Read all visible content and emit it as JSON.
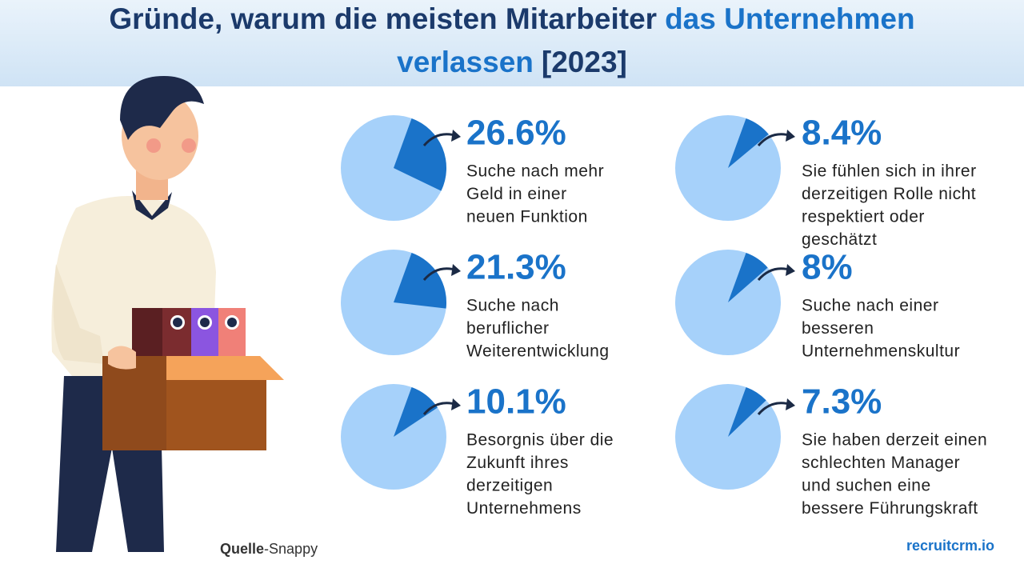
{
  "header": {
    "title_line1": [
      "Gründe, warum die meisten Mitarbeiter",
      "das Unternehmen"
    ],
    "title_line2": [
      "verlassen",
      "[2023]"
    ]
  },
  "chart_data": [
    {
      "type": "pie",
      "values": [
        26.6
      ],
      "value_labels": [
        "26.6%"
      ],
      "color": "#1a73c9",
      "rest_color": "#a6d1fa",
      "description": [
        "Suche nach mehr",
        "Geld in einer",
        "neuen Funktion"
      ]
    },
    {
      "type": "pie",
      "values": [
        21.3
      ],
      "value_labels": [
        "21.3%"
      ],
      "color": "#1a73c9",
      "rest_color": "#a6d1fa",
      "description": [
        "Suche nach",
        "beruflicher",
        "Weiterentwicklung"
      ]
    },
    {
      "type": "pie",
      "values": [
        10.1
      ],
      "value_labels": [
        "10.1%"
      ],
      "color": "#1a73c9",
      "rest_color": "#a6d1fa",
      "description": [
        "Besorgnis über die",
        "Zukunft ihres",
        "derzeitigen",
        "Unternehmens"
      ]
    },
    {
      "type": "pie",
      "values": [
        8.4
      ],
      "value_labels": [
        "8.4%"
      ],
      "color": "#1a73c9",
      "rest_color": "#a6d1fa",
      "description": [
        "Sie fühlen sich in ihrer",
        "derzeitigen Rolle nicht",
        "respektiert oder",
        "geschätzt"
      ]
    },
    {
      "type": "pie",
      "values": [
        8
      ],
      "value_labels": [
        "8%"
      ],
      "color": "#1a73c9",
      "rest_color": "#a6d1fa",
      "description": [
        "Suche nach einer",
        "besseren",
        "Unternehmenskultur"
      ]
    },
    {
      "type": "pie",
      "values": [
        7.3
      ],
      "value_labels": [
        "7.3%"
      ],
      "color": "#1a73c9",
      "rest_color": "#a6d1fa",
      "description": [
        "Sie haben derzeit einen",
        "schlechten Manager",
        "und suchen eine",
        "bessere Führungskraft"
      ]
    }
  ],
  "footer": {
    "source_label": "Quelle",
    "source_name": "-Snappy",
    "brand": "recruitcrm.io"
  }
}
